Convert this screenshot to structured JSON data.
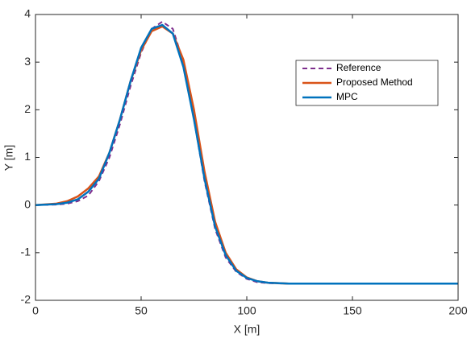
{
  "chart_data": {
    "type": "line",
    "xlabel": "X [m]",
    "ylabel": "Y [m]",
    "x": [
      0,
      10,
      15,
      20,
      25,
      30,
      35,
      40,
      45,
      50,
      55,
      60,
      65,
      70,
      75,
      80,
      85,
      90,
      95,
      100,
      105,
      110,
      120,
      150,
      200
    ],
    "series": [
      {
        "name": "Reference",
        "color": "#7e2f8e",
        "dashed": true,
        "values": [
          0,
          0.01,
          0.03,
          0.08,
          0.2,
          0.5,
          1.0,
          1.7,
          2.5,
          3.2,
          3.7,
          3.85,
          3.7,
          3.0,
          1.8,
          0.5,
          -0.5,
          -1.1,
          -1.4,
          -1.55,
          -1.62,
          -1.64,
          -1.65,
          -1.65,
          -1.65
        ]
      },
      {
        "name": "Proposed Method",
        "color": "#d95319",
        "values": [
          0,
          0.03,
          0.08,
          0.18,
          0.35,
          0.6,
          1.1,
          1.8,
          2.6,
          3.25,
          3.65,
          3.75,
          3.6,
          3.05,
          2.0,
          0.7,
          -0.35,
          -1.0,
          -1.35,
          -1.52,
          -1.6,
          -1.63,
          -1.65,
          -1.65,
          -1.65
        ]
      },
      {
        "name": "MPC",
        "color": "#0072bd",
        "values": [
          0,
          0.02,
          0.05,
          0.12,
          0.28,
          0.55,
          1.1,
          1.8,
          2.6,
          3.3,
          3.7,
          3.78,
          3.6,
          2.9,
          1.8,
          0.55,
          -0.45,
          -1.05,
          -1.38,
          -1.53,
          -1.6,
          -1.63,
          -1.65,
          -1.65,
          -1.65
        ]
      }
    ],
    "xlim": [
      0,
      200
    ],
    "ylim": [
      -2,
      4
    ],
    "xticks": [
      0,
      50,
      100,
      150,
      200
    ],
    "yticks": [
      -2,
      -1,
      0,
      1,
      2,
      3,
      4
    ],
    "legend": "top-right"
  }
}
